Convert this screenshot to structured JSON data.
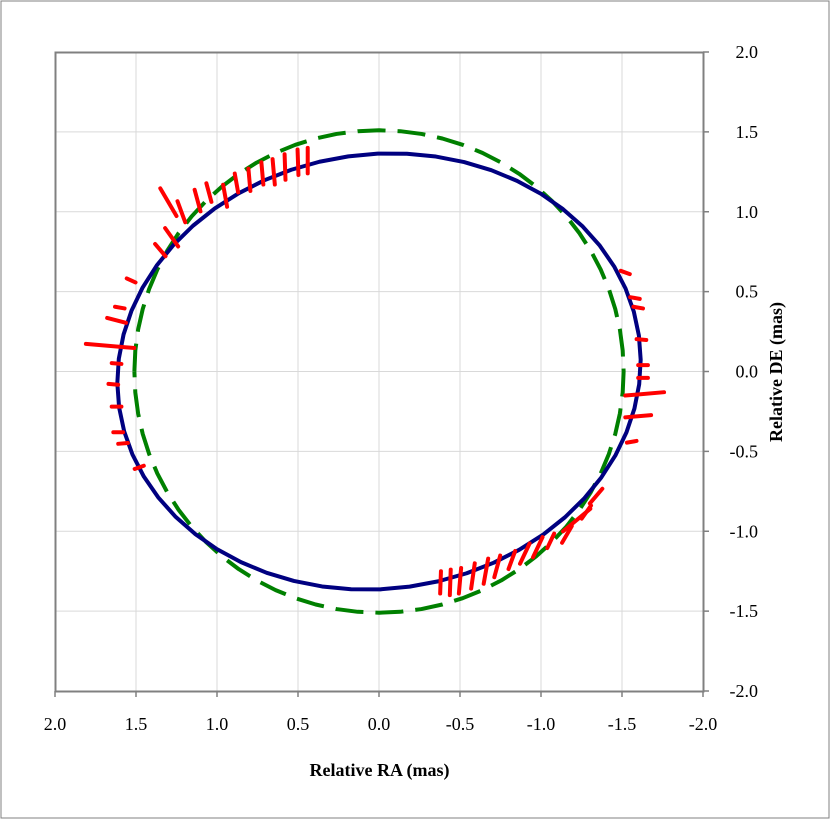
{
  "chart_data": {
    "type": "scatter",
    "title": "",
    "xlabel": "Relative RA (mas)",
    "ylabel": "Relative DE (mas)",
    "xlim": [
      2.0,
      -2.0
    ],
    "ylim": [
      -2.0,
      2.0
    ],
    "x_reversed": true,
    "x_ticks": [
      "2.0",
      "1.5",
      "1.0",
      "0.5",
      "0.0",
      "-0.5",
      "-1.0",
      "-1.5",
      "-2.0"
    ],
    "y_ticks": [
      "2.0",
      "1.5",
      "1.0",
      "0.5",
      "0.0",
      "-0.5",
      "-1.0",
      "-1.5",
      "-2.0"
    ],
    "y_axis_side": "right",
    "grid": true,
    "legend": "none",
    "colors": {
      "model_orbit": "#000080",
      "alt_orbit": "#008000",
      "measurements": "#ff0000",
      "frame": "#808080",
      "grid": "#d9d9d9"
    },
    "series": [
      {
        "kind": "solid-ellipse",
        "color": "#000080",
        "center": [
          0.0,
          0.0
        ],
        "ra_semi": 1.62,
        "de_semi": 1.36,
        "rotation_deg": -8
      },
      {
        "kind": "dashed-ellipse",
        "color": "#008000",
        "center": [
          0.0,
          0.0
        ],
        "ra_semi": 1.51,
        "de_semi": 1.51,
        "rotation_deg": 0
      },
      {
        "kind": "error-segments",
        "color": "#ff0000",
        "points": [
          {
            "ra": 1.3,
            "de": 1.06,
            "len": 0.2,
            "ang": 60
          },
          {
            "ra": 1.22,
            "de": 1.0,
            "len": 0.14,
            "ang": 70
          },
          {
            "ra": 1.12,
            "de": 1.07,
            "len": 0.14,
            "ang": 75
          },
          {
            "ra": 1.05,
            "de": 1.12,
            "len": 0.12,
            "ang": 75
          },
          {
            "ra": 0.95,
            "de": 1.1,
            "len": 0.14,
            "ang": 80
          },
          {
            "ra": 0.88,
            "de": 1.18,
            "len": 0.12,
            "ang": 80
          },
          {
            "ra": 0.8,
            "de": 1.2,
            "len": 0.14,
            "ang": 85
          },
          {
            "ra": 0.72,
            "de": 1.24,
            "len": 0.14,
            "ang": 85
          },
          {
            "ra": 0.65,
            "de": 1.25,
            "len": 0.16,
            "ang": 85
          },
          {
            "ra": 0.58,
            "de": 1.28,
            "len": 0.16,
            "ang": 88
          },
          {
            "ra": 0.5,
            "de": 1.31,
            "len": 0.16,
            "ang": 88
          },
          {
            "ra": 0.44,
            "de": 1.32,
            "len": 0.16,
            "ang": 90
          },
          {
            "ra": 1.28,
            "de": 0.84,
            "len": 0.14,
            "ang": 55
          },
          {
            "ra": 1.35,
            "de": 0.76,
            "len": 0.1,
            "ang": 50
          },
          {
            "ra": 1.53,
            "de": 0.57,
            "len": 0.06,
            "ang": 25
          },
          {
            "ra": 1.6,
            "de": 0.4,
            "len": 0.06,
            "ang": 10
          },
          {
            "ra": 1.62,
            "de": 0.32,
            "len": 0.12,
            "ang": 15
          },
          {
            "ra": 1.66,
            "de": 0.16,
            "len": 0.3,
            "ang": 5
          },
          {
            "ra": 1.62,
            "de": 0.05,
            "len": 0.06,
            "ang": 5
          },
          {
            "ra": 1.64,
            "de": -0.08,
            "len": 0.06,
            "ang": 5
          },
          {
            "ra": 1.62,
            "de": -0.22,
            "len": 0.06,
            "ang": 0
          },
          {
            "ra": 1.61,
            "de": -0.38,
            "len": 0.06,
            "ang": 0
          },
          {
            "ra": 1.58,
            "de": -0.45,
            "len": 0.06,
            "ang": -5
          },
          {
            "ra": 1.48,
            "de": -0.6,
            "len": 0.06,
            "ang": -20
          },
          {
            "ra": -1.52,
            "de": 0.62,
            "len": 0.06,
            "ang": 20
          },
          {
            "ra": -1.58,
            "de": 0.46,
            "len": 0.06,
            "ang": 10
          },
          {
            "ra": -1.6,
            "de": 0.4,
            "len": 0.06,
            "ang": 10
          },
          {
            "ra": -1.62,
            "de": 0.2,
            "len": 0.06,
            "ang": 5
          },
          {
            "ra": -1.63,
            "de": 0.04,
            "len": 0.06,
            "ang": 0
          },
          {
            "ra": -1.63,
            "de": -0.04,
            "len": 0.06,
            "ang": 0
          },
          {
            "ra": -1.64,
            "de": -0.14,
            "len": 0.24,
            "ang": -5
          },
          {
            "ra": -1.6,
            "de": -0.28,
            "len": 0.16,
            "ang": -5
          },
          {
            "ra": -1.56,
            "de": -0.44,
            "len": 0.06,
            "ang": -10
          },
          {
            "ra": -1.34,
            "de": -0.78,
            "len": 0.12,
            "ang": -50
          },
          {
            "ra": -1.28,
            "de": -0.88,
            "len": 0.1,
            "ang": -55
          },
          {
            "ra": -1.22,
            "de": -0.93,
            "len": 0.22,
            "ang": -40
          },
          {
            "ra": -1.16,
            "de": -1.02,
            "len": 0.12,
            "ang": -60
          },
          {
            "ra": -1.06,
            "de": -1.06,
            "len": 0.1,
            "ang": -65
          },
          {
            "ra": -0.98,
            "de": -1.1,
            "len": 0.14,
            "ang": -65
          },
          {
            "ra": -0.9,
            "de": -1.14,
            "len": 0.14,
            "ang": -65
          },
          {
            "ra": -0.82,
            "de": -1.18,
            "len": 0.12,
            "ang": -70
          },
          {
            "ra": -0.73,
            "de": -1.22,
            "len": 0.14,
            "ang": -75
          },
          {
            "ra": -0.66,
            "de": -1.25,
            "len": 0.16,
            "ang": -80
          },
          {
            "ra": -0.58,
            "de": -1.28,
            "len": 0.16,
            "ang": -82
          },
          {
            "ra": -0.5,
            "de": -1.31,
            "len": 0.16,
            "ang": -85
          },
          {
            "ra": -0.44,
            "de": -1.32,
            "len": 0.16,
            "ang": -88
          },
          {
            "ra": -0.38,
            "de": -1.32,
            "len": 0.14,
            "ang": -88
          }
        ]
      }
    ]
  }
}
